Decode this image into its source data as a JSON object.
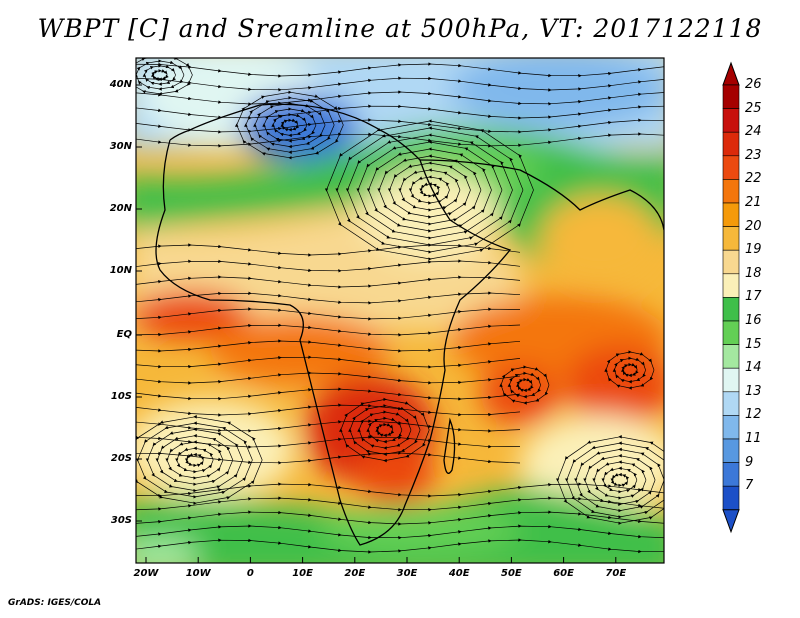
{
  "title": "WBPT [C] and Sreamline at 500hPa, VT: 2017122118",
  "credit": "GrADS: IGES/COLA",
  "map": {
    "lat_labels": [
      "40N",
      "30N",
      "20N",
      "10N",
      "EQ",
      "10S",
      "20S",
      "30S"
    ],
    "lon_labels": [
      "20W",
      "10W",
      "0",
      "10E",
      "20E",
      "30E",
      "40E",
      "50E",
      "60E",
      "70E"
    ]
  },
  "colorbar": {
    "levels": [
      "26",
      "25",
      "24",
      "23",
      "22",
      "21",
      "20",
      "19",
      "18",
      "17",
      "16",
      "15",
      "14",
      "13",
      "12",
      "11",
      "9",
      "7"
    ],
    "colors": [
      "#a50000",
      "#c8100c",
      "#dc2a0a",
      "#ec4a10",
      "#f4760c",
      "#f59a0a",
      "#f6b83a",
      "#f8d890",
      "#fbf0b8",
      "#3fbf4a",
      "#63cf55",
      "#a4e8a0",
      "#e0f6f2",
      "#b0d8f4",
      "#80b8ec",
      "#5898e0",
      "#3c78d8",
      "#1c50c8"
    ]
  }
}
